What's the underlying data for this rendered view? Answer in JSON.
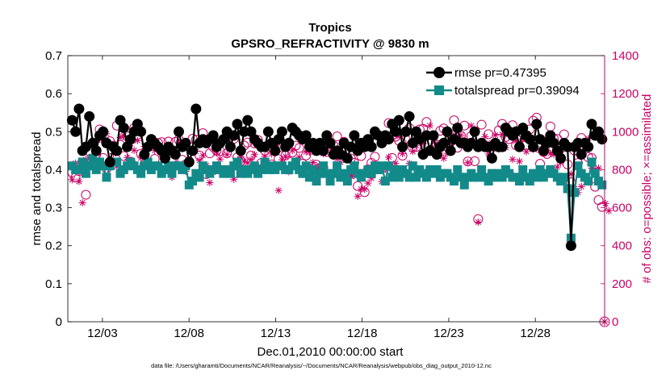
{
  "chart_data": {
    "type": "line",
    "title": "Tropics",
    "subtitle": "GPSRO_REFRACTIVITY @ 9830 m",
    "xlabel": "Dec.01,2010 00:00:00 start",
    "ylabel_left": "rmse and totalspread",
    "ylabel_right": "# of obs: o=possible; ×=assimilated",
    "footnote": "data file: /Users/gharamti/Documents/NCAR/Reanalysis/~/Documents/NCAR/Reanalysis/webpub/obs_diag_output_2010-12.nc",
    "x_tick_labels": [
      "12/03",
      "12/08",
      "12/13",
      "12/18",
      "12/23",
      "12/28"
    ],
    "x_tick_days": [
      3,
      8,
      13,
      18,
      23,
      28
    ],
    "xlim_days": [
      1,
      32
    ],
    "ylim_left": [
      0,
      0.7
    ],
    "left_ticks": [
      "0",
      "0.1",
      "0.2",
      "0.3",
      "0.4",
      "0.5",
      "0.6",
      "0.7"
    ],
    "ylim_right": [
      0,
      1400
    ],
    "right_ticks": [
      "0",
      "200",
      "400",
      "600",
      "800",
      "1000",
      "1200",
      "1400"
    ],
    "colors": {
      "rmse": "#000000",
      "totalspread": "#138a8a",
      "obs": "#cc0066"
    },
    "legend": [
      {
        "name": "rmse",
        "label": "rmse pr=0.47395"
      },
      {
        "name": "totalspread",
        "label": "totalspread pr=0.39094"
      }
    ],
    "series": [
      {
        "name": "rmse",
        "values": [
          0.53,
          0.5,
          0.56,
          0.45,
          0.46,
          0.54,
          0.47,
          0.45,
          0.49,
          0.5,
          0.47,
          0.42,
          0.46,
          0.45,
          0.53,
          0.51,
          0.46,
          0.48,
          0.5,
          0.52,
          0.5,
          0.44,
          0.46,
          0.48,
          0.47,
          0.46,
          0.45,
          0.43,
          0.46,
          0.45,
          0.44,
          0.5,
          0.46,
          0.47,
          0.42,
          0.45,
          0.56,
          0.47,
          0.48,
          0.47,
          0.48,
          0.49,
          0.46,
          0.47,
          0.48,
          0.5,
          0.46,
          0.49,
          0.52,
          0.45,
          0.5,
          0.53,
          0.5,
          0.48,
          0.47,
          0.46,
          0.46,
          0.5,
          0.47,
          0.45,
          0.48,
          0.5,
          0.46,
          0.47,
          0.51,
          0.5,
          0.49,
          0.48,
          0.49,
          0.46,
          0.47,
          0.45,
          0.47,
          0.45,
          0.49,
          0.47,
          0.44,
          0.45,
          0.44,
          0.47,
          0.43,
          0.46,
          0.49,
          0.45,
          0.47,
          0.46,
          0.48,
          0.46,
          0.5,
          0.49,
          0.47,
          0.49,
          0.48,
          0.52,
          0.5,
          0.53,
          0.46,
          0.5,
          0.54,
          0.47,
          0.5,
          0.48,
          0.44,
          0.49,
          0.45,
          0.49,
          0.44,
          0.46,
          0.47,
          0.5,
          0.45,
          0.48,
          0.51,
          0.47,
          0.47,
          0.46,
          0.47,
          0.5,
          0.46,
          0.47,
          0.46,
          0.46,
          0.43,
          0.47,
          0.46,
          0.46,
          0.51,
          0.5,
          0.49,
          0.5,
          0.46,
          0.51,
          0.49,
          0.48,
          0.46,
          0.52,
          0.48,
          0.45,
          0.47,
          0.49,
          0.47,
          0.45,
          0.43,
          0.47,
          0.46,
          0.2,
          0.46,
          0.47,
          0.44,
          0.47,
          0.46,
          0.52,
          0.49,
          0.5,
          0.48
        ]
      },
      {
        "name": "totalspread",
        "values": [
          0.41,
          0.4,
          0.4,
          0.42,
          0.39,
          0.41,
          0.43,
          0.4,
          0.42,
          0.41,
          0.38,
          0.41,
          0.42,
          0.42,
          0.39,
          0.4,
          0.41,
          0.42,
          0.41,
          0.4,
          0.39,
          0.41,
          0.42,
          0.4,
          0.41,
          0.41,
          0.39,
          0.4,
          0.41,
          0.39,
          0.41,
          0.41,
          0.4,
          0.41,
          0.36,
          0.37,
          0.39,
          0.38,
          0.41,
          0.4,
          0.39,
          0.4,
          0.41,
          0.4,
          0.39,
          0.4,
          0.39,
          0.41,
          0.42,
          0.39,
          0.4,
          0.39,
          0.4,
          0.41,
          0.39,
          0.4,
          0.42,
          0.4,
          0.41,
          0.4,
          0.41,
          0.41,
          0.4,
          0.4,
          0.41,
          0.42,
          0.4,
          0.39,
          0.41,
          0.38,
          0.4,
          0.37,
          0.39,
          0.41,
          0.39,
          0.37,
          0.39,
          0.41,
          0.38,
          0.39,
          0.37,
          0.4,
          0.41,
          0.39,
          0.38,
          0.39,
          0.4,
          0.39,
          0.41,
          0.4,
          0.41,
          0.37,
          0.41,
          0.38,
          0.4,
          0.38,
          0.4,
          0.39,
          0.38,
          0.41,
          0.38,
          0.4,
          0.39,
          0.38,
          0.4,
          0.39,
          0.4,
          0.38,
          0.39,
          0.39,
          0.38,
          0.37,
          0.4,
          0.38,
          0.36,
          0.38,
          0.39,
          0.38,
          0.38,
          0.4,
          0.38,
          0.37,
          0.39,
          0.38,
          0.39,
          0.38,
          0.4,
          0.39,
          0.38,
          0.38,
          0.37,
          0.4,
          0.38,
          0.37,
          0.39,
          0.38,
          0.4,
          0.38,
          0.39,
          0.4,
          0.39,
          0.38,
          0.37,
          0.38,
          0.35,
          0.22,
          0.34,
          0.41,
          0.39,
          0.38,
          0.37,
          0.42,
          0.39,
          0.37,
          0.36
        ]
      },
      {
        "name": "obs_possible",
        "values": [
          786,
          759,
          793,
          835,
          668,
          897,
          938,
          879,
          1012,
          862,
          805,
          950,
          927,
          1032,
          931,
          872,
          975,
          842,
          1018,
          983,
          884,
          827,
          919,
          931,
          857,
          940,
          945,
          868,
          948,
          843,
          946,
          958,
          852,
          828,
          844,
          963,
          957,
          875,
          992,
          777,
          886,
          919,
          900,
          898,
          796,
          886,
          978,
          962,
          865,
          846,
          927,
          943,
          875,
          938,
          956,
          836,
          900,
          915,
          828,
          932,
          855,
          918,
          875,
          843,
          891,
          927,
          914,
          831,
          875,
          922,
          931,
          826,
          928,
          812,
          893,
          901,
          926,
          975,
          898,
          947,
          766,
          859,
          836,
          714,
          872,
          682,
          802,
          836,
          868,
          802,
          942,
          812,
          1045,
          862,
          973,
          952,
          874,
          958,
          1019,
          917,
          920,
          1012,
          1015,
          1051,
          903,
          975,
          931,
          1005,
          1017,
          922,
          971,
          1060,
          916,
          979,
          1032,
          843,
          977,
          845,
          540,
          1037,
          929,
          987,
          924,
          922,
          1007,
          1041,
          972,
          961,
          1034,
          928,
          967,
          991,
          930,
          1012,
          1058,
          1074,
          831,
          893,
          883,
          1027,
          963,
          962,
          911,
          986,
          828,
          733,
          901,
          835,
          967,
          920,
          866,
          861,
          710,
          640,
          604
        ]
      },
      {
        "name": "obs_assimilated",
        "values": [
          747,
          834,
          738,
          626,
          853,
          860,
          951,
          910,
          962,
          956,
          989,
          851,
          884,
          818,
          970,
          979,
          864,
          938,
          902,
          953,
          862,
          922,
          833,
          919,
          901,
          918,
          880,
          791,
          896,
          760,
          830,
          939,
          827,
          791,
          849,
          895,
          896,
          849,
          875,
          823,
          732,
          786,
          887,
          856,
          783,
          879,
          810,
          750,
          815,
          869,
          845,
          836,
          853,
          879,
          812,
          814,
          871,
          802,
          883,
          895,
          691,
          852,
          870,
          789,
          900,
          821,
          866,
          774,
          893,
          892,
          838,
          820,
          819,
          885,
          903,
          759,
          909,
          857,
          839,
          878,
          777,
          765,
          769,
          660,
          698,
          697,
          729,
          756,
          808,
          819,
          737,
          803,
          866,
          964,
          833,
          975,
          884,
          936,
          833,
          896,
          928,
          955,
          937,
          979,
          1031,
          909,
          938,
          876,
          860,
          886,
          993,
          965,
          952,
          981,
          954,
          837,
          1031,
          944,
          524,
          942,
          974,
          883,
          941,
          982,
          908,
          986,
          916,
          986,
          854,
          951,
          844,
          960,
          895,
          982,
          908,
          910,
          902,
          960,
          900,
          886,
          880,
          814,
          837,
          927,
          917,
          777,
          700,
          680,
          711,
          931,
          963,
          808,
          801,
          808,
          720,
          622,
          584
        ]
      }
    ],
    "end_markers": {
      "possible_at_end": 0,
      "assimilated_at_end": 0
    }
  }
}
